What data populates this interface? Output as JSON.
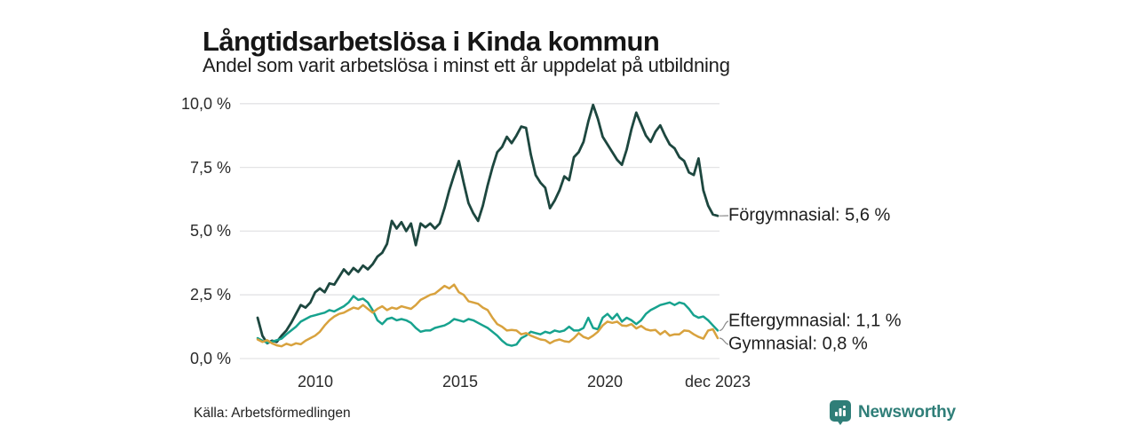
{
  "header": {
    "title": "Långtidsarbetslösa i Kinda kommun",
    "subtitle": "Andel som varit arbetslösa i minst ett år uppdelat på utbildning"
  },
  "footer": {
    "source": "Källa: Arbetsförmedlingen",
    "brand": "Newsworthy"
  },
  "colors": {
    "forgymnasial": "#1d473f",
    "eftergymnasial": "#17a28e",
    "gymnasial": "#d8a23e",
    "grid": "#e3e3e5",
    "connector": "#8a8a8a",
    "brand_teal": "#2f7e78",
    "text": "#1d1d1d"
  },
  "chart_data": {
    "type": "line",
    "title": "Långtidsarbetslösa i Kinda kommun",
    "subtitle": "Andel som varit arbetslösa i minst ett år uppdelat på utbildning",
    "unit": "%",
    "grid": "horizontal",
    "legend_position": "right-end-labels",
    "xlim": [
      2008.0,
      2023.917
    ],
    "ylim": [
      0,
      10
    ],
    "x_tick_years": [
      2010,
      2015,
      2020,
      2023.917
    ],
    "x_tick_labels": [
      "2010",
      "2015",
      "2020",
      "dec 2023"
    ],
    "y_ticks": [
      10,
      7.5,
      5,
      2.5,
      0
    ],
    "y_tick_labels": [
      "10,0 %",
      "7,5 %",
      "5,0 %",
      "2,5 %",
      "0,0 %"
    ],
    "point_interval": "2 months, Jan 2008 – Dec 2023",
    "series": [
      {
        "name": "Förgymnasial",
        "color": "#1d473f",
        "end_value": 5.6,
        "end_label": "Förgymnasial: 5,6 %",
        "values": [
          1.6,
          0.9,
          0.6,
          0.7,
          0.65,
          0.9,
          1.1,
          1.4,
          1.75,
          2.1,
          2.0,
          2.2,
          2.6,
          2.75,
          2.6,
          2.95,
          2.9,
          3.2,
          3.5,
          3.3,
          3.55,
          3.4,
          3.65,
          3.5,
          3.7,
          4.0,
          4.15,
          4.5,
          5.4,
          5.1,
          5.35,
          5.0,
          5.3,
          4.45,
          5.3,
          5.15,
          5.3,
          5.1,
          5.3,
          5.9,
          6.6,
          7.2,
          7.75,
          6.9,
          6.1,
          5.7,
          5.4,
          6.0,
          6.8,
          7.5,
          8.1,
          8.3,
          8.7,
          8.45,
          8.75,
          9.1,
          9.05,
          8.0,
          7.2,
          6.9,
          6.7,
          5.9,
          6.2,
          6.6,
          7.15,
          7.0,
          7.9,
          8.1,
          8.5,
          9.3,
          9.95,
          9.4,
          8.7,
          8.4,
          8.1,
          7.8,
          7.6,
          8.2,
          9.0,
          9.65,
          9.2,
          8.75,
          8.5,
          8.9,
          9.15,
          8.75,
          8.4,
          8.25,
          7.9,
          7.75,
          7.3,
          7.2,
          7.85,
          6.6,
          6.0,
          5.65,
          5.6
        ]
      },
      {
        "name": "Eftergymnasial",
        "color": "#17a28e",
        "end_value": 1.1,
        "end_label": "Eftergymnasial: 1,1 %",
        "values": [
          0.8,
          0.7,
          0.62,
          0.66,
          0.72,
          0.78,
          0.95,
          1.1,
          1.25,
          1.45,
          1.55,
          1.65,
          1.7,
          1.75,
          1.8,
          1.9,
          1.85,
          1.95,
          2.05,
          2.2,
          2.45,
          2.3,
          2.35,
          2.2,
          1.9,
          1.5,
          1.35,
          1.55,
          1.6,
          1.5,
          1.55,
          1.5,
          1.4,
          1.2,
          1.05,
          1.1,
          1.1,
          1.2,
          1.25,
          1.3,
          1.4,
          1.55,
          1.5,
          1.45,
          1.55,
          1.5,
          1.4,
          1.3,
          1.2,
          1.05,
          0.9,
          0.7,
          0.55,
          0.5,
          0.55,
          0.8,
          0.9,
          1.05,
          1.0,
          0.95,
          1.05,
          1.0,
          1.1,
          1.05,
          1.1,
          1.25,
          1.1,
          1.1,
          1.2,
          1.6,
          1.2,
          1.15,
          1.6,
          1.75,
          1.55,
          1.75,
          1.45,
          1.6,
          1.5,
          1.35,
          1.5,
          1.75,
          1.9,
          2.0,
          2.1,
          2.15,
          2.2,
          2.1,
          2.2,
          2.15,
          1.95,
          1.7,
          1.6,
          1.65,
          1.5,
          1.3,
          1.1
        ]
      },
      {
        "name": "Gymnasial",
        "color": "#d8a23e",
        "end_value": 0.8,
        "end_label": "Gymnasial: 0,8 %",
        "values": [
          0.75,
          0.65,
          0.72,
          0.6,
          0.52,
          0.48,
          0.58,
          0.52,
          0.6,
          0.56,
          0.7,
          0.8,
          0.9,
          1.05,
          1.3,
          1.5,
          1.65,
          1.75,
          1.8,
          1.9,
          2.0,
          1.95,
          2.1,
          1.95,
          1.8,
          1.95,
          2.05,
          1.9,
          2.0,
          1.95,
          2.05,
          2.0,
          1.95,
          2.1,
          2.3,
          2.4,
          2.5,
          2.55,
          2.7,
          2.85,
          2.75,
          2.9,
          2.6,
          2.5,
          2.25,
          2.2,
          2.15,
          2.0,
          1.9,
          1.6,
          1.35,
          1.25,
          1.1,
          1.12,
          1.1,
          0.95,
          1.0,
          0.9,
          0.82,
          0.75,
          0.72,
          0.6,
          0.7,
          0.75,
          0.68,
          0.65,
          0.8,
          1.0,
          0.85,
          0.78,
          0.9,
          1.05,
          1.3,
          1.45,
          1.4,
          1.45,
          1.3,
          1.28,
          1.35,
          1.18,
          1.28,
          1.15,
          1.1,
          1.12,
          0.95,
          1.08,
          0.9,
          0.95,
          0.95,
          1.1,
          1.08,
          0.95,
          0.85,
          0.78,
          1.1,
          1.15,
          0.8
        ]
      }
    ]
  }
}
